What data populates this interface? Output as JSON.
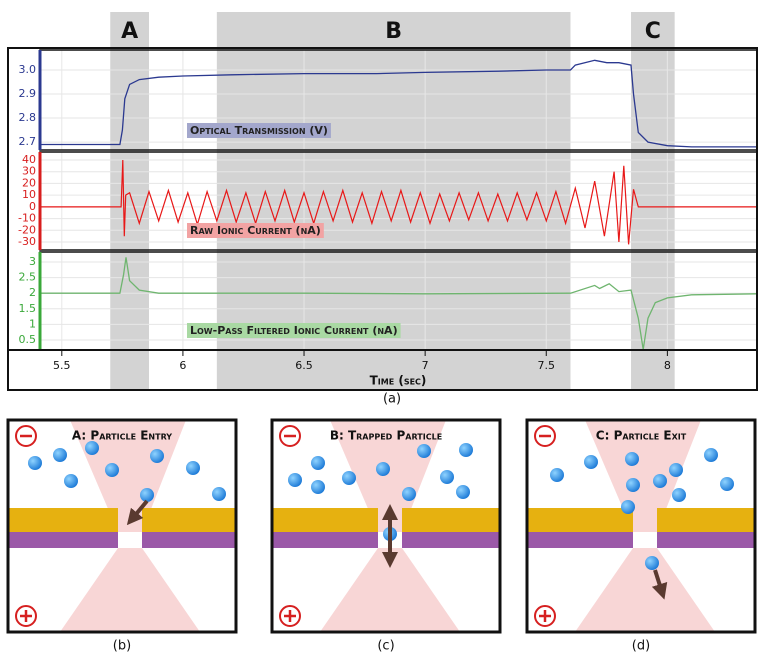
{
  "chart_data": [
    {
      "type": "line",
      "ylabel": "Optical Transmission (V)",
      "xlim": [
        5.41,
        8.37
      ],
      "ylim": [
        2.667,
        3.083
      ],
      "yticks": [
        {
          "value": 3,
          "label": "3.0"
        },
        2.9,
        2.8,
        2.7
      ],
      "grid": true,
      "axis_color": "#2b3990",
      "label_color": "#a3a7cc",
      "regions": [
        {
          "label": "A",
          "start": 5.7,
          "end": 5.86
        },
        {
          "label": "B",
          "start": 6.14,
          "end": 7.6
        },
        {
          "label": "C",
          "start": 7.85,
          "end": 8.03
        }
      ],
      "series": [
        {
          "color": "#2b3990",
          "x": [
            5.41,
            5.74,
            5.75,
            5.76,
            5.78,
            5.82,
            5.9,
            6.0,
            6.2,
            6.5,
            6.8,
            7.0,
            7.3,
            7.5,
            7.6,
            7.62,
            7.7,
            7.75,
            7.8,
            7.85,
            7.86,
            7.88,
            7.92,
            8.0,
            8.1,
            8.37
          ],
          "values": [
            2.69,
            2.69,
            2.75,
            2.88,
            2.94,
            2.96,
            2.97,
            2.975,
            2.98,
            2.985,
            2.985,
            2.99,
            2.995,
            3.0,
            3.0,
            3.02,
            3.04,
            3.03,
            3.03,
            3.02,
            2.9,
            2.74,
            2.7,
            2.685,
            2.68,
            2.68
          ]
        }
      ]
    },
    {
      "type": "line",
      "ylabel": "Raw Ionic Current (nA)",
      "xlim": [
        5.41,
        8.37
      ],
      "ylim": [
        -36.8,
        46.8
      ],
      "yticks": [
        40,
        30,
        20,
        10,
        0,
        -10,
        -20,
        -30
      ],
      "grid": true,
      "axis_color": "#d81e1e",
      "label_color": "#f2a3a3",
      "series": [
        {
          "color": "#e81818",
          "x": [
            5.41,
            5.745,
            5.752,
            5.758,
            5.764,
            5.78,
            5.82,
            5.86,
            5.9,
            5.94,
            5.98,
            6.02,
            6.06,
            6.1,
            6.14,
            6.18,
            6.22,
            6.26,
            6.3,
            6.34,
            6.38,
            6.42,
            6.46,
            6.5,
            6.54,
            6.58,
            6.62,
            6.66,
            6.7,
            6.74,
            6.78,
            6.82,
            6.86,
            6.9,
            6.94,
            6.98,
            7.02,
            7.06,
            7.1,
            7.14,
            7.18,
            7.22,
            7.26,
            7.3,
            7.34,
            7.38,
            7.42,
            7.46,
            7.5,
            7.54,
            7.58,
            7.62,
            7.66,
            7.7,
            7.74,
            7.78,
            7.8,
            7.82,
            7.84,
            7.86,
            7.88,
            8.37
          ],
          "values": [
            0,
            0,
            40,
            -25,
            10,
            12,
            -14,
            13,
            -12,
            14,
            -13,
            12,
            -15,
            13,
            -12,
            14,
            -13,
            12,
            -14,
            13,
            -12,
            14,
            -13,
            12,
            -14,
            13,
            -12,
            14,
            -13,
            12,
            -14,
            13,
            -12,
            14,
            -13,
            12,
            -14,
            11,
            -12,
            12,
            -11,
            12,
            -12,
            11,
            -12,
            12,
            -11,
            12,
            -12,
            13,
            -14,
            16,
            -18,
            22,
            -25,
            30,
            -30,
            35,
            -32,
            15,
            0,
            0
          ]
        }
      ]
    },
    {
      "type": "line",
      "ylabel": "Low-Pass Filtered Ionic Current (nA)",
      "xlim": [
        5.41,
        8.37
      ],
      "ylim": [
        0.18,
        3.32
      ],
      "yticks": [
        3,
        2.5,
        2,
        1.5,
        1,
        0.5
      ],
      "grid": true,
      "axis_color": "#3aa83a",
      "label_color": "#a9d9a3",
      "xticks": [
        5.5,
        6,
        6.5,
        7,
        7.5,
        8
      ],
      "xlabel": "Time (sec)",
      "series": [
        {
          "color": "#6fb56f",
          "x": [
            5.41,
            5.74,
            5.755,
            5.765,
            5.78,
            5.82,
            5.9,
            6.5,
            7.0,
            7.6,
            7.7,
            7.72,
            7.76,
            7.8,
            7.85,
            7.88,
            7.9,
            7.92,
            7.95,
            8.0,
            8.1,
            8.37
          ],
          "values": [
            2.0,
            2.0,
            2.6,
            3.15,
            2.4,
            2.1,
            2.0,
            2.0,
            1.98,
            2.0,
            2.25,
            2.15,
            2.3,
            2.05,
            2.1,
            1.2,
            0.2,
            1.2,
            1.7,
            1.85,
            1.95,
            1.98
          ]
        }
      ]
    }
  ],
  "caption": "(a)",
  "diagrams": [
    {
      "title": "A: Particle Entry",
      "caption": "(b)"
    },
    {
      "title": "B: Trapped Particle",
      "caption": "(c)"
    },
    {
      "title": "C: Particle Exit",
      "caption": "(d)"
    }
  ]
}
